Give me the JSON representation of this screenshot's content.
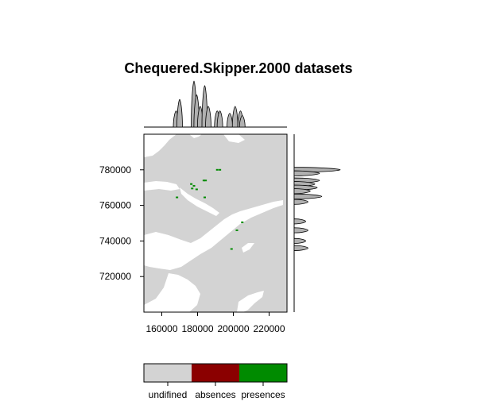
{
  "title": "Chequered.Skipper.2000 datasets",
  "chart_data": {
    "type": "heatmap",
    "title": "Chequered.Skipper.2000 datasets",
    "xlabel": "",
    "ylabel": "",
    "xlim": [
      150000,
      230000
    ],
    "ylim": [
      700000,
      800000
    ],
    "x_ticks": [
      "160000",
      "180000",
      "200000",
      "220000"
    ],
    "x_tick_values": [
      160000,
      180000,
      200000,
      220000
    ],
    "y_ticks": [
      "720000",
      "740000",
      "760000",
      "780000"
    ],
    "y_tick_values": [
      720000,
      740000,
      760000,
      780000
    ],
    "colors": {
      "undifined": "#d3d3d3",
      "absences": "#8b0000",
      "presences": "#008b00",
      "background": "#ffffff"
    },
    "legend": {
      "placement": "bottom",
      "labels": [
        "undifined",
        "absences",
        "presences"
      ],
      "colors": [
        "#d3d3d3",
        "#8b0000",
        "#008b00"
      ]
    },
    "presence_points": [
      [
        168500,
        764500
      ],
      [
        176500,
        772000
      ],
      [
        177000,
        769500
      ],
      [
        178000,
        771000
      ],
      [
        179500,
        769000
      ],
      [
        183500,
        774000
      ],
      [
        184500,
        774000
      ],
      [
        184000,
        764500
      ],
      [
        191000,
        780000
      ],
      [
        192500,
        780000
      ],
      [
        205000,
        750500
      ],
      [
        202000,
        746000
      ],
      [
        199000,
        735500
      ]
    ],
    "top_marginal_density": {
      "x": [
        168000,
        170000,
        178000,
        179500,
        181500,
        184000,
        186000,
        191000,
        192500,
        198000,
        201000,
        204000,
        205000
      ],
      "density": [
        0.35,
        0.6,
        1.0,
        0.7,
        0.45,
        0.9,
        0.45,
        0.35,
        0.35,
        0.3,
        0.45,
        0.35,
        0.25
      ]
    },
    "right_marginal_density": {
      "y": [
        780000,
        778000,
        774000,
        772000,
        770000,
        768000,
        765000,
        762000,
        751000,
        746000,
        740000,
        736000
      ],
      "density": [
        1.0,
        0.55,
        0.55,
        0.45,
        0.5,
        0.35,
        0.6,
        0.3,
        0.25,
        0.3,
        0.25,
        0.3
      ]
    }
  }
}
